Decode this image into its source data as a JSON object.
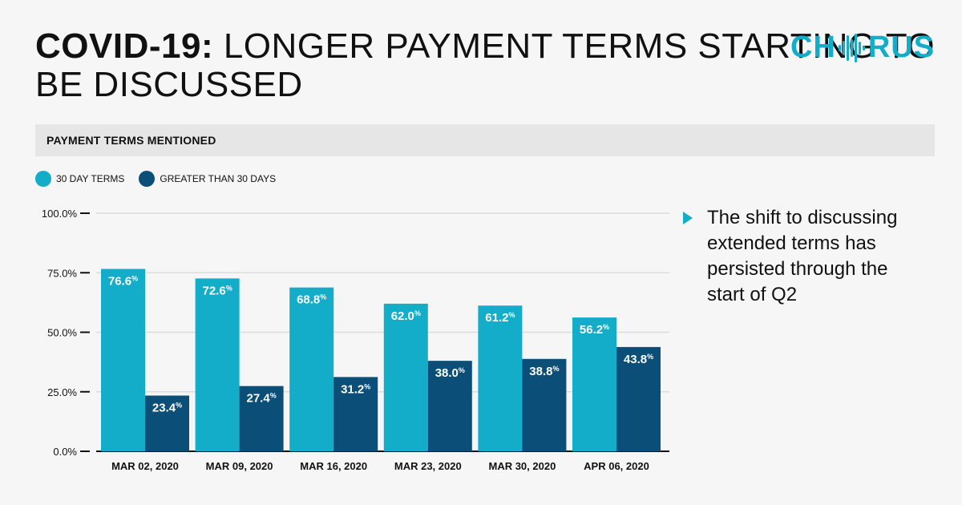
{
  "header": {
    "title_bold": "COVID-19:",
    "title_rest": " LONGER PAYMENT TERMS STARTING TO BE DISCUSSED"
  },
  "brand": {
    "logo_before": "CH",
    "logo_after": "RUS",
    "logo_icon": "sound-wave-icon"
  },
  "section": {
    "label": "PAYMENT TERMS MENTIONED"
  },
  "colors": {
    "series1": "#14adc9",
    "series2": "#0b4f78",
    "gridline": "#dcdcdc"
  },
  "chart_data": {
    "type": "bar",
    "title": "PAYMENT TERMS MENTIONED",
    "categories": [
      "MAR 02, 2020",
      "MAR 09, 2020",
      "MAR 16, 2020",
      "MAR 23, 2020",
      "MAR 30, 2020",
      "APR 06, 2020"
    ],
    "series": [
      {
        "name": "30 DAY TERMS",
        "values": [
          76.6,
          72.6,
          68.8,
          62.0,
          61.2,
          56.2
        ]
      },
      {
        "name": "GREATER THAN 30 DAYS",
        "values": [
          23.4,
          27.4,
          31.2,
          38.0,
          38.8,
          43.8
        ]
      }
    ],
    "yticks": [
      0,
      25,
      50,
      75,
      100
    ],
    "ytick_labels": [
      "0.0%",
      "25.0%",
      "50.0%",
      "75.0%",
      "100.0%"
    ],
    "ylim": [
      0,
      100
    ],
    "xlabel": "",
    "ylabel": "",
    "legend_position": "top-left"
  },
  "note": {
    "text": "The shift to discussing extended terms has persisted through the start of Q2"
  }
}
